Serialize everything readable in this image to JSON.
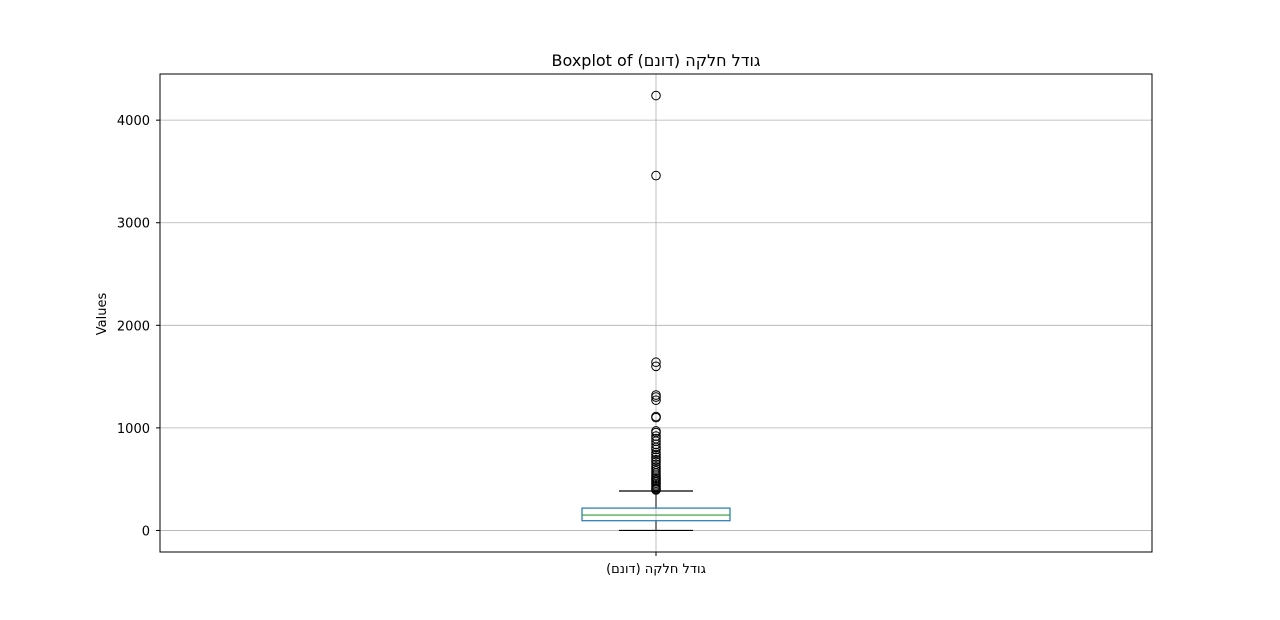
{
  "chart_data": {
    "type": "boxplot",
    "title": "Boxplot of גודל חלקה (דונם)",
    "xlabel": "",
    "ylabel": "Values",
    "categories": [
      "גודל חלקה (דונם)"
    ],
    "ylim": [
      -210,
      4450
    ],
    "yticks": [
      0,
      1000,
      2000,
      3000,
      4000
    ],
    "grid": true,
    "box": {
      "whisker_low": 0,
      "q1": 95,
      "median": 150,
      "q3": 218,
      "whisker_high": 385
    },
    "outliers": [
      4240,
      3460,
      1640,
      1600,
      1320,
      1300,
      1270,
      1110,
      1100,
      970,
      955,
      920,
      895,
      870,
      840,
      810,
      790,
      760,
      740,
      715,
      690,
      670,
      645,
      620,
      600,
      580,
      560,
      540,
      520,
      505,
      490,
      475,
      460,
      445,
      430,
      415,
      405,
      395
    ]
  }
}
